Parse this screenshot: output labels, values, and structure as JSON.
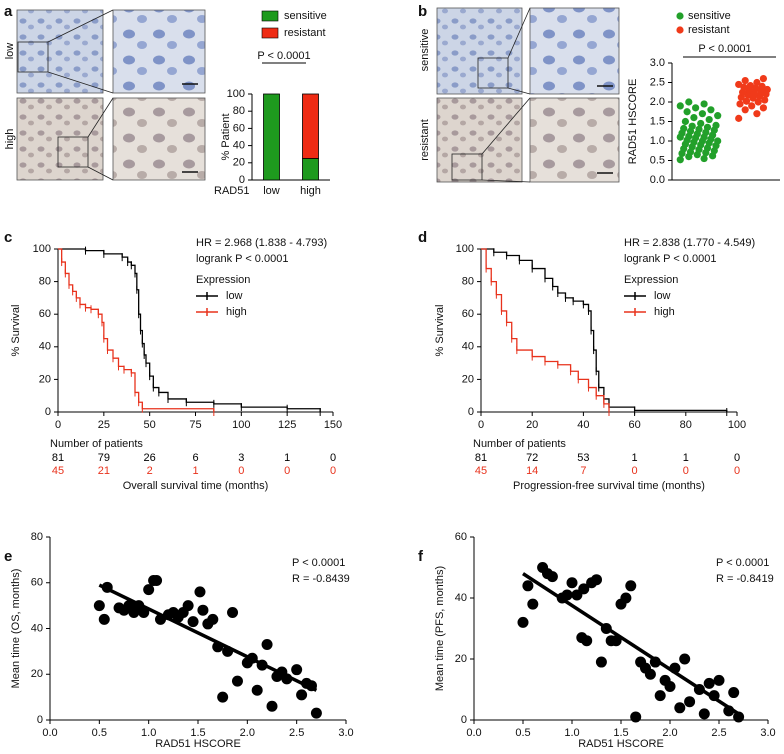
{
  "chart_data": [
    {
      "type": "bar",
      "panel": "a",
      "image_rows": [
        "low",
        "high"
      ],
      "categories": [
        "low",
        "high"
      ],
      "x_label": "RAD51",
      "y_label": "% Patient",
      "series": [
        {
          "name": "sensitive",
          "color": "#1e9a1e",
          "values": [
            100,
            25
          ]
        },
        {
          "name": "resistant",
          "color": "#ee2b14",
          "values": [
            0,
            75
          ]
        }
      ],
      "annotations": [
        "P < 0.0001"
      ],
      "ylim": [
        0,
        100
      ],
      "yticks": [
        0,
        20,
        40,
        60,
        80,
        100
      ]
    },
    {
      "type": "dotplot",
      "panel": "b",
      "image_rows": [
        "sensitive",
        "resistant"
      ],
      "y_label": "RAD51 HSCORE",
      "series": [
        {
          "name": "sensitive",
          "color": "#22a02a",
          "values": [
            0.52,
            0.55,
            0.6,
            0.62,
            0.65,
            0.68,
            0.7,
            0.72,
            0.75,
            0.78,
            0.8,
            0.82,
            0.85,
            0.88,
            0.9,
            0.92,
            0.95,
            0.97,
            1.0,
            1.0,
            1.02,
            1.05,
            1.08,
            1.1,
            1.1,
            1.12,
            1.15,
            1.18,
            1.2,
            1.22,
            1.25,
            1.28,
            1.3,
            1.32,
            1.35,
            1.38,
            1.4,
            1.45,
            1.5,
            1.55,
            1.6,
            1.65,
            1.7,
            1.75,
            1.8,
            1.85,
            1.9,
            1.95,
            2.0
          ]
        },
        {
          "name": "resistant",
          "color": "#f03a1a",
          "values": [
            1.58,
            1.7,
            1.8,
            1.85,
            1.9,
            1.95,
            2.0,
            2.02,
            2.05,
            2.1,
            2.12,
            2.15,
            2.18,
            2.2,
            2.22,
            2.25,
            2.28,
            2.3,
            2.32,
            2.35,
            2.38,
            2.4,
            2.42,
            2.45,
            2.5,
            2.55,
            2.6
          ]
        }
      ],
      "annotations": [
        "P < 0.0001"
      ],
      "ylim": [
        0,
        3
      ],
      "yticks": [
        {
          "value": 0,
          "label": "0.0"
        },
        {
          "value": 0.5,
          "label": "0.5"
        },
        {
          "value": 1,
          "label": "1.0"
        },
        {
          "value": 1.5,
          "label": "1.5"
        },
        {
          "value": 2,
          "label": "2.0"
        },
        {
          "value": 2.5,
          "label": "2.5"
        },
        {
          "value": 3,
          "label": "3.0"
        }
      ]
    },
    {
      "type": "line",
      "step": true,
      "panel": "c",
      "x_label": "Overall survival time (months)",
      "y_label": "% Survival",
      "annotations": [
        "HR = 2.968 (1.838 - 4.793)",
        "logrank P < 0.0001"
      ],
      "legend_title": "Expression",
      "at_risk_title": "Number of patients",
      "series": [
        {
          "name": "low",
          "color": "#000000",
          "x": [
            0,
            15,
            25,
            35,
            38,
            40,
            42,
            43,
            44,
            45,
            46,
            47,
            48,
            50,
            52,
            55,
            60,
            70,
            85,
            100,
            125,
            143
          ],
          "values": [
            100,
            99,
            97,
            95,
            92,
            90,
            85,
            75,
            60,
            50,
            42,
            35,
            30,
            22,
            15,
            12,
            8,
            6,
            5,
            3,
            2,
            0
          ],
          "at_risk": [
            81,
            79,
            26,
            6,
            3,
            1,
            0
          ]
        },
        {
          "name": "high",
          "color": "#e8321c",
          "x": [
            0,
            2,
            4,
            6,
            8,
            10,
            12,
            15,
            18,
            22,
            24,
            25,
            27,
            30,
            33,
            36,
            40,
            42,
            44,
            46,
            85
          ],
          "values": [
            100,
            92,
            85,
            78,
            74,
            70,
            66,
            64,
            63,
            60,
            55,
            45,
            38,
            33,
            28,
            26,
            24,
            12,
            6,
            2,
            0
          ],
          "at_risk": [
            45,
            21,
            2,
            1,
            0,
            0,
            0
          ]
        }
      ],
      "xlim": [
        0,
        150
      ],
      "xticks": [
        0,
        25,
        50,
        75,
        100,
        125,
        150
      ],
      "ylim": [
        0,
        100
      ],
      "yticks": [
        0,
        20,
        40,
        60,
        80,
        100
      ]
    },
    {
      "type": "line",
      "step": true,
      "panel": "d",
      "x_label": "Progression-free survival time (months)",
      "y_label": "% Survival",
      "annotations": [
        "HR = 2.838 (1.770 - 4.549)",
        "logrank P < 0.0001"
      ],
      "legend_title": "Expression",
      "at_risk_title": "Number of patients",
      "series": [
        {
          "name": "low",
          "color": "#000000",
          "x": [
            0,
            5,
            10,
            15,
            20,
            25,
            28,
            30,
            33,
            36,
            40,
            42,
            43,
            44,
            45,
            46,
            48,
            50,
            60,
            96
          ],
          "values": [
            100,
            98,
            96,
            93,
            88,
            82,
            77,
            73,
            70,
            68,
            66,
            62,
            50,
            38,
            25,
            15,
            8,
            3,
            1,
            0
          ],
          "at_risk": [
            81,
            72,
            53,
            1,
            1,
            0
          ]
        },
        {
          "name": "high",
          "color": "#e8321c",
          "x": [
            0,
            2,
            4,
            6,
            8,
            10,
            12,
            14,
            20,
            25,
            30,
            35,
            38,
            42,
            45,
            48,
            50
          ],
          "values": [
            100,
            88,
            80,
            72,
            62,
            55,
            45,
            38,
            34,
            31,
            29,
            25,
            20,
            15,
            10,
            5,
            0
          ],
          "at_risk": [
            45,
            14,
            7,
            0,
            0,
            0
          ]
        }
      ],
      "xlim": [
        0,
        100
      ],
      "xticks": [
        0,
        20,
        40,
        60,
        80,
        100
      ],
      "ylim": [
        0,
        100
      ],
      "yticks": [
        0,
        20,
        40,
        60,
        80,
        100
      ]
    },
    {
      "type": "scatter",
      "panel": "e",
      "x_label": "RAD51 HSCORE",
      "y_label": "Mean time (OS, months)",
      "annotations": [
        "P < 0.0001",
        "R = -0.8439"
      ],
      "x": [
        0.5,
        0.55,
        0.58,
        0.7,
        0.75,
        0.8,
        0.85,
        0.9,
        0.95,
        1.0,
        1.05,
        1.08,
        1.12,
        1.2,
        1.25,
        1.3,
        1.35,
        1.4,
        1.45,
        1.52,
        1.55,
        1.6,
        1.65,
        1.7,
        1.75,
        1.8,
        1.85,
        1.9,
        2.0,
        2.05,
        2.1,
        2.15,
        2.2,
        2.25,
        2.3,
        2.35,
        2.4,
        2.5,
        2.55,
        2.6,
        2.65,
        2.7
      ],
      "values": [
        50,
        44,
        58,
        49,
        48,
        50,
        47,
        50,
        47,
        57,
        61,
        61,
        44,
        46,
        47,
        45,
        47,
        50,
        43,
        56,
        48,
        42,
        44,
        32,
        10,
        30,
        47,
        17,
        25,
        27,
        13,
        24,
        33,
        6,
        19,
        21,
        18,
        22,
        11,
        16,
        15,
        3
      ],
      "color": "#000000",
      "fit": {
        "x": [
          0.5,
          2.7
        ],
        "y": [
          59,
          13
        ]
      },
      "xlim": [
        0,
        3
      ],
      "xticks": [
        {
          "value": 0,
          "label": "0.0"
        },
        {
          "value": 0.5,
          "label": "0.5"
        },
        {
          "value": 1,
          "label": "1.0"
        },
        {
          "value": 1.5,
          "label": "1.5"
        },
        {
          "value": 2,
          "label": "2.0"
        },
        {
          "value": 2.5,
          "label": "2.5"
        },
        {
          "value": 3,
          "label": "3.0"
        }
      ],
      "ylim": [
        0,
        80
      ],
      "yticks": [
        0,
        20,
        40,
        60,
        80
      ]
    },
    {
      "type": "scatter",
      "panel": "f",
      "x_label": "RAD51 HSCORE",
      "y_label": "Mean time (PFS, months)",
      "annotations": [
        "P < 0.0001",
        "R = -0.8419"
      ],
      "x": [
        0.5,
        0.55,
        0.6,
        0.7,
        0.75,
        0.8,
        0.9,
        0.95,
        1.0,
        1.05,
        1.1,
        1.12,
        1.15,
        1.2,
        1.25,
        1.3,
        1.35,
        1.4,
        1.45,
        1.5,
        1.55,
        1.6,
        1.65,
        1.7,
        1.75,
        1.8,
        1.85,
        1.9,
        1.95,
        2.0,
        2.05,
        2.1,
        2.15,
        2.2,
        2.3,
        2.35,
        2.4,
        2.45,
        2.5,
        2.6,
        2.65,
        2.7
      ],
      "values": [
        32,
        44,
        38,
        50,
        48,
        47,
        40,
        41,
        45,
        41,
        27,
        43,
        26,
        45,
        46,
        19,
        30,
        26,
        26,
        38,
        40,
        44,
        1,
        19,
        17,
        15,
        19,
        8,
        13,
        11,
        17,
        4,
        20,
        6,
        10,
        2,
        12,
        8,
        13,
        3,
        9,
        1
      ],
      "color": "#000000",
      "fit": {
        "x": [
          0.5,
          2.7
        ],
        "y": [
          48,
          2
        ]
      },
      "xlim": [
        0,
        3
      ],
      "xticks": [
        {
          "value": 0,
          "label": "0.0"
        },
        {
          "value": 0.5,
          "label": "0.5"
        },
        {
          "value": 1,
          "label": "1.0"
        },
        {
          "value": 1.5,
          "label": "1.5"
        },
        {
          "value": 2,
          "label": "2.0"
        },
        {
          "value": 2.5,
          "label": "2.5"
        },
        {
          "value": 3,
          "label": "3.0"
        }
      ],
      "ylim": [
        0,
        60
      ],
      "yticks": [
        0,
        20,
        40,
        60
      ]
    }
  ]
}
